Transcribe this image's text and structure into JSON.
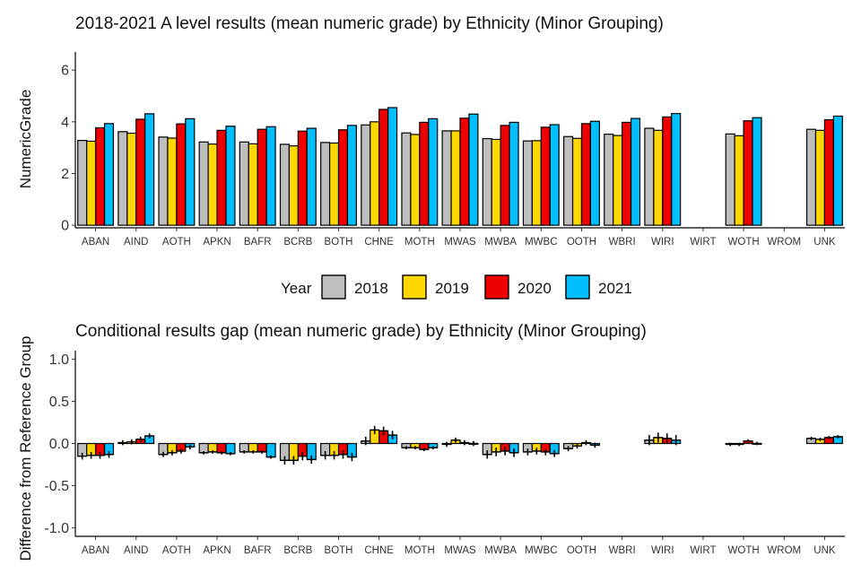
{
  "colors": {
    "2018": "#bebebe",
    "2019": "#ffd700",
    "2020": "#ee0000",
    "2021": "#00bfff"
  },
  "legend": {
    "title": "Year",
    "entries": [
      "2018",
      "2019",
      "2020",
      "2021"
    ]
  },
  "chart_data": [
    {
      "type": "bar",
      "title": "2018-2021 A level results (mean numeric grade) by Ethnicity (Minor Grouping)",
      "xlabel": "",
      "ylabel": "NumericGrade",
      "ylim": [
        -0.1,
        6.7
      ],
      "yticks": [
        0,
        2,
        4,
        6
      ],
      "ytick_labels": [
        "0",
        "2",
        "4",
        "6"
      ],
      "categories": [
        "ABAN",
        "AIND",
        "AOTH",
        "APKN",
        "BAFR",
        "BCRB",
        "BOTH",
        "CHNE",
        "MOTH",
        "MWAS",
        "MWBA",
        "MWBC",
        "OOTH",
        "WBRI",
        "WIRI",
        "WIRT",
        "WOTH",
        "WROM",
        "UNK"
      ],
      "series": [
        {
          "name": "2018",
          "values": [
            3.28,
            3.62,
            3.41,
            3.22,
            3.22,
            3.13,
            3.2,
            3.88,
            3.57,
            3.65,
            3.35,
            3.26,
            3.43,
            3.52,
            3.75,
            null,
            3.53,
            null,
            3.71
          ]
        },
        {
          "name": "2019",
          "values": [
            3.25,
            3.56,
            3.37,
            3.14,
            3.15,
            3.07,
            3.18,
            4.0,
            3.51,
            3.65,
            3.32,
            3.27,
            3.36,
            3.47,
            3.67,
            null,
            3.46,
            null,
            3.67
          ]
        },
        {
          "name": "2020",
          "values": [
            3.77,
            4.1,
            3.92,
            3.67,
            3.71,
            3.64,
            3.69,
            4.48,
            3.98,
            4.14,
            3.86,
            3.79,
            3.93,
            3.98,
            4.19,
            null,
            4.04,
            null,
            4.08
          ]
        },
        {
          "name": "2021",
          "values": [
            3.93,
            4.31,
            4.12,
            3.83,
            3.81,
            3.75,
            3.86,
            4.55,
            4.12,
            4.3,
            3.98,
            3.89,
            4.02,
            4.13,
            4.32,
            null,
            4.16,
            null,
            4.22
          ]
        }
      ]
    },
    {
      "type": "bar",
      "title": "Conditional results gap (mean numeric grade) by Ethnicity (Minor Grouping)",
      "xlabel": "",
      "ylabel": "Difference from Reference Group",
      "ylim": [
        -1.1,
        1.1
      ],
      "yticks": [
        -1.0,
        -0.5,
        0.0,
        0.5,
        1.0
      ],
      "ytick_labels": [
        "-1.0",
        "-0.5",
        "0.0",
        "0.5",
        "1.0"
      ],
      "categories": [
        "ABAN",
        "AIND",
        "AOTH",
        "APKN",
        "BAFR",
        "BCRB",
        "BOTH",
        "CHNE",
        "MOTH",
        "MWAS",
        "MWBA",
        "MWBC",
        "OOTH",
        "WBRI",
        "WIRI",
        "WIRT",
        "WOTH",
        "WROM",
        "UNK"
      ],
      "series": [
        {
          "name": "2018",
          "values": [
            -0.15,
            0.01,
            -0.13,
            -0.11,
            -0.1,
            -0.2,
            -0.14,
            0.03,
            -0.05,
            -0.01,
            -0.13,
            -0.1,
            -0.06,
            null,
            0.04,
            null,
            -0.01,
            null,
            0.06
          ]
        },
        {
          "name": "2019",
          "values": [
            -0.14,
            0.02,
            -0.11,
            -0.1,
            -0.1,
            -0.2,
            -0.14,
            0.16,
            -0.05,
            0.04,
            -0.1,
            -0.09,
            -0.03,
            null,
            0.07,
            null,
            -0.01,
            null,
            0.05
          ]
        },
        {
          "name": "2020",
          "values": [
            -0.14,
            0.05,
            -0.09,
            -0.11,
            -0.1,
            -0.15,
            -0.13,
            0.15,
            -0.07,
            0.01,
            -0.09,
            -0.1,
            0.01,
            null,
            0.06,
            null,
            0.03,
            null,
            0.07
          ]
        },
        {
          "name": "2021",
          "values": [
            -0.13,
            0.09,
            -0.04,
            -0.12,
            -0.16,
            -0.19,
            -0.16,
            0.1,
            -0.05,
            0.0,
            -0.11,
            -0.12,
            -0.02,
            null,
            0.04,
            null,
            0.0,
            null,
            0.08
          ]
        }
      ],
      "error_halfwidth": [
        0.04,
        0.03,
        0.03,
        0.02,
        0.02,
        0.05,
        0.05,
        0.05,
        0.02,
        0.03,
        0.05,
        0.04,
        0.03,
        null,
        0.06,
        null,
        0.02,
        null,
        0.02
      ]
    }
  ]
}
